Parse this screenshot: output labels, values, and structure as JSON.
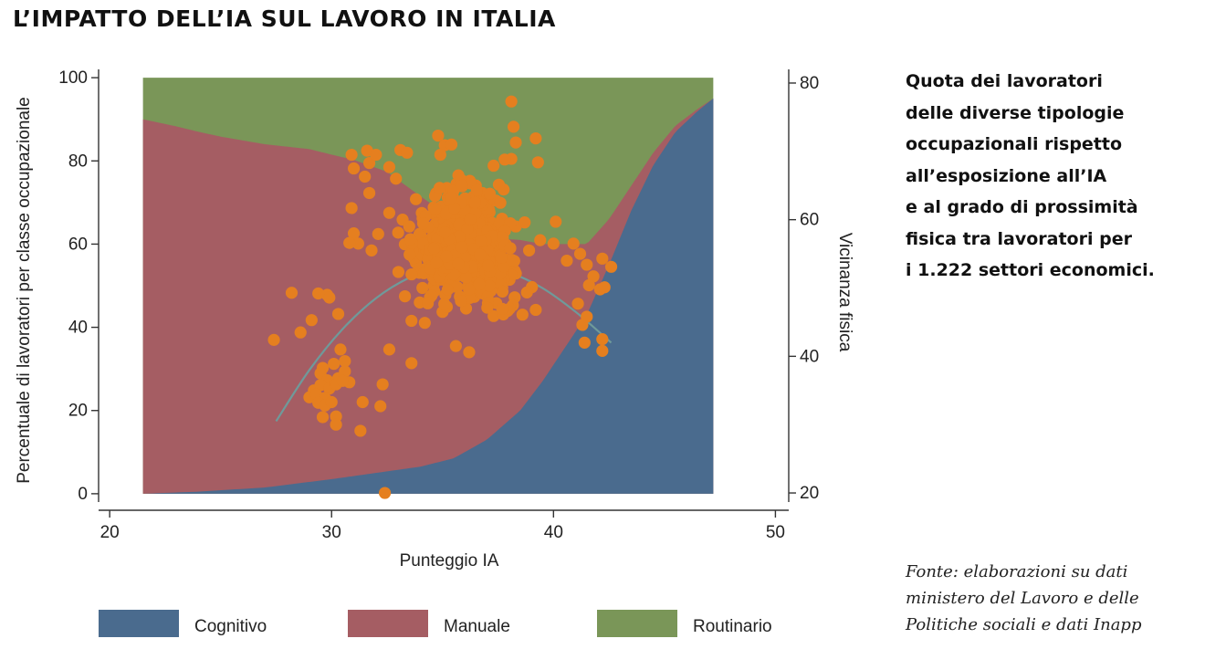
{
  "title": "L’IMPATTO DELL’IA SUL LAVORO IN ITALIA",
  "description_lines": [
    "Quota dei lavoratori",
    "delle diverse tipologie",
    "occupazionali rispetto",
    "all’esposizione all’IA",
    "e al grado di prossimità",
    "fisica tra lavoratori per",
    "i 1.222 settori economici."
  ],
  "source_lines": [
    "Fonte: elaborazioni su dati",
    "ministero del Lavoro e delle",
    "Politiche sociali e dati Inapp"
  ],
  "legend": [
    {
      "label": "Cognitivo",
      "color": "#4a6b8e"
    },
    {
      "label": "Manuale",
      "color": "#a55d63"
    },
    {
      "label": "Routinario",
      "color": "#7a9658"
    }
  ],
  "chart_data": {
    "type": "area",
    "xlabel": "Punteggio IA",
    "ylabel_left": "Percentuale di lavoratori per classe occupazionale",
    "ylabel_right": "Vicinanza fisica",
    "xlim": [
      19.5,
      50.6
    ],
    "ylim_left": [
      -2,
      102
    ],
    "ylim_right": [
      18.67,
      82.0
    ],
    "x_ticks": [
      20,
      30,
      40,
      50
    ],
    "y_left_ticks": [
      0,
      20,
      40,
      60,
      80,
      100
    ],
    "y_right_ticks": [
      20,
      40,
      60,
      80
    ],
    "grid": false,
    "legend_position": "bottom",
    "stacked_series": [
      {
        "name": "Cognitivo",
        "color": "#4a6b8e",
        "x": [
          21.5,
          24,
          27,
          30,
          32,
          34,
          35.5,
          37,
          38.5,
          39.5,
          40.5,
          41.5,
          42.5,
          43.5,
          44.5,
          45.5,
          46.5,
          47.2
        ],
        "y": [
          0,
          0.5,
          1.5,
          3.5,
          5,
          6.5,
          8.5,
          13,
          20,
          27,
          35,
          43,
          55,
          68,
          79,
          87,
          92,
          95
        ]
      },
      {
        "name": "Manuale",
        "color": "#a55d63",
        "x": [
          21.5,
          23,
          25,
          27,
          29,
          31,
          32.5,
          34,
          35,
          35.5,
          36.5,
          37.5,
          38.5,
          39.5,
          40.5,
          41.5,
          42.5,
          43.5,
          44.5,
          45.5,
          46.5,
          47.2
        ],
        "y": [
          90,
          88,
          85,
          82.5,
          80,
          76,
          72,
          65,
          60,
          55,
          50,
          46,
          41,
          33,
          25,
          17,
          11,
          6,
          3,
          1.5,
          0.5,
          0
        ]
      },
      {
        "name": "Routinario",
        "color": "#7a9658",
        "x": [
          21.5,
          47.2
        ],
        "y": [
          "remainder to 100",
          "remainder to 100"
        ]
      }
    ],
    "fit_curve": {
      "axis": "right",
      "color": "#6f9a9a",
      "x": [
        27.5,
        29,
        30.5,
        32,
        33.5,
        35,
        36.5,
        38,
        39.5,
        41,
        42.6
      ],
      "y": [
        30.5,
        38,
        44,
        48.5,
        51.5,
        53.2,
        53.5,
        52.3,
        50,
        46.5,
        42
      ]
    },
    "scatter": {
      "axis": "right",
      "color": "#e57f1f",
      "points": [
        [
          27.4,
          42.4
        ],
        [
          28.2,
          49.3
        ],
        [
          28.6,
          43.5
        ],
        [
          29.1,
          45.3
        ],
        [
          29.4,
          49.2
        ],
        [
          29.8,
          49.0
        ],
        [
          29.9,
          48.6
        ],
        [
          30.3,
          46.2
        ],
        [
          30.4,
          41.0
        ],
        [
          30.6,
          39.3
        ],
        [
          29.6,
          38.3
        ],
        [
          29.5,
          37.5
        ],
        [
          29.8,
          36.5
        ],
        [
          30.1,
          38.9
        ],
        [
          30.3,
          36.8
        ],
        [
          30.6,
          37.8
        ],
        [
          30.8,
          36.2
        ],
        [
          29.2,
          35.0
        ],
        [
          29.5,
          35.8
        ],
        [
          29.9,
          35.3
        ],
        [
          30.2,
          35.9
        ],
        [
          30.5,
          36.4
        ],
        [
          29.0,
          34.0
        ],
        [
          29.3,
          34.4
        ],
        [
          29.7,
          33.9
        ],
        [
          29.4,
          33.2
        ],
        [
          29.7,
          32.8
        ],
        [
          30.0,
          33.3
        ],
        [
          29.6,
          31.1
        ],
        [
          30.2,
          31.2
        ],
        [
          30.2,
          30.0
        ],
        [
          31.4,
          33.3
        ],
        [
          32.3,
          35.9
        ],
        [
          32.2,
          32.7
        ],
        [
          31.3,
          29.1
        ],
        [
          32.4,
          20.0
        ],
        [
          31.0,
          58.0
        ],
        [
          30.9,
          61.7
        ],
        [
          31.2,
          56.5
        ],
        [
          30.8,
          56.6
        ],
        [
          31.8,
          55.5
        ],
        [
          32.1,
          57.9
        ],
        [
          31.7,
          63.9
        ],
        [
          32.9,
          66.0
        ],
        [
          31.5,
          66.3
        ],
        [
          31.6,
          70.1
        ],
        [
          33.1,
          70.2
        ],
        [
          33.4,
          69.8
        ],
        [
          30.9,
          69.5
        ],
        [
          31.0,
          67.5
        ],
        [
          31.7,
          68.3
        ],
        [
          32.6,
          67.7
        ],
        [
          32.0,
          69.5
        ],
        [
          32.6,
          61.0
        ],
        [
          33.2,
          60.0
        ],
        [
          33.0,
          58.1
        ],
        [
          33.8,
          63.0
        ],
        [
          34.1,
          60.2
        ],
        [
          34.6,
          61.8
        ],
        [
          33.5,
          59.0
        ],
        [
          33.3,
          56.4
        ],
        [
          33.9,
          55.6
        ],
        [
          34.5,
          57.3
        ],
        [
          35.1,
          55.8
        ],
        [
          35.5,
          58.5
        ],
        [
          35.0,
          54.1
        ],
        [
          34.4,
          53.7
        ],
        [
          34.9,
          52.2
        ],
        [
          35.4,
          51.5
        ],
        [
          35.8,
          53.6
        ],
        [
          36.1,
          55.0
        ],
        [
          34.8,
          72.3
        ],
        [
          35.1,
          70.9
        ],
        [
          35.4,
          71.0
        ],
        [
          34.9,
          69.5
        ],
        [
          36.5,
          65.0
        ],
        [
          36.8,
          63.9
        ],
        [
          37.3,
          67.9
        ],
        [
          38.1,
          77.3
        ],
        [
          38.2,
          73.6
        ],
        [
          38.3,
          71.3
        ],
        [
          39.2,
          71.9
        ],
        [
          39.3,
          68.4
        ],
        [
          38.1,
          68.9
        ],
        [
          37.8,
          68.8
        ],
        [
          37.4,
          62.8
        ],
        [
          37.1,
          61.4
        ],
        [
          38.3,
          59.0
        ],
        [
          38.7,
          59.6
        ],
        [
          39.4,
          57.0
        ],
        [
          38.9,
          55.5
        ],
        [
          40.0,
          56.5
        ],
        [
          40.1,
          59.7
        ],
        [
          40.9,
          56.5
        ],
        [
          41.2,
          55.0
        ],
        [
          40.6,
          54.0
        ],
        [
          41.5,
          53.4
        ],
        [
          41.8,
          51.7
        ],
        [
          42.2,
          54.3
        ],
        [
          41.6,
          50.4
        ],
        [
          42.1,
          49.8
        ],
        [
          42.6,
          53.1
        ],
        [
          42.3,
          50.1
        ],
        [
          41.1,
          47.7
        ],
        [
          41.3,
          44.6
        ],
        [
          41.5,
          45.8
        ],
        [
          41.4,
          42.0
        ],
        [
          42.2,
          42.5
        ],
        [
          42.2,
          40.8
        ],
        [
          36.2,
          40.6
        ],
        [
          35.6,
          41.5
        ],
        [
          37.3,
          45.9
        ],
        [
          39.2,
          46.8
        ],
        [
          38.6,
          46.1
        ],
        [
          33.6,
          45.2
        ],
        [
          34.2,
          44.9
        ],
        [
          35.0,
          46.5
        ],
        [
          36.0,
          48.2
        ],
        [
          32.6,
          41.0
        ],
        [
          33.6,
          39.0
        ]
      ]
    }
  }
}
